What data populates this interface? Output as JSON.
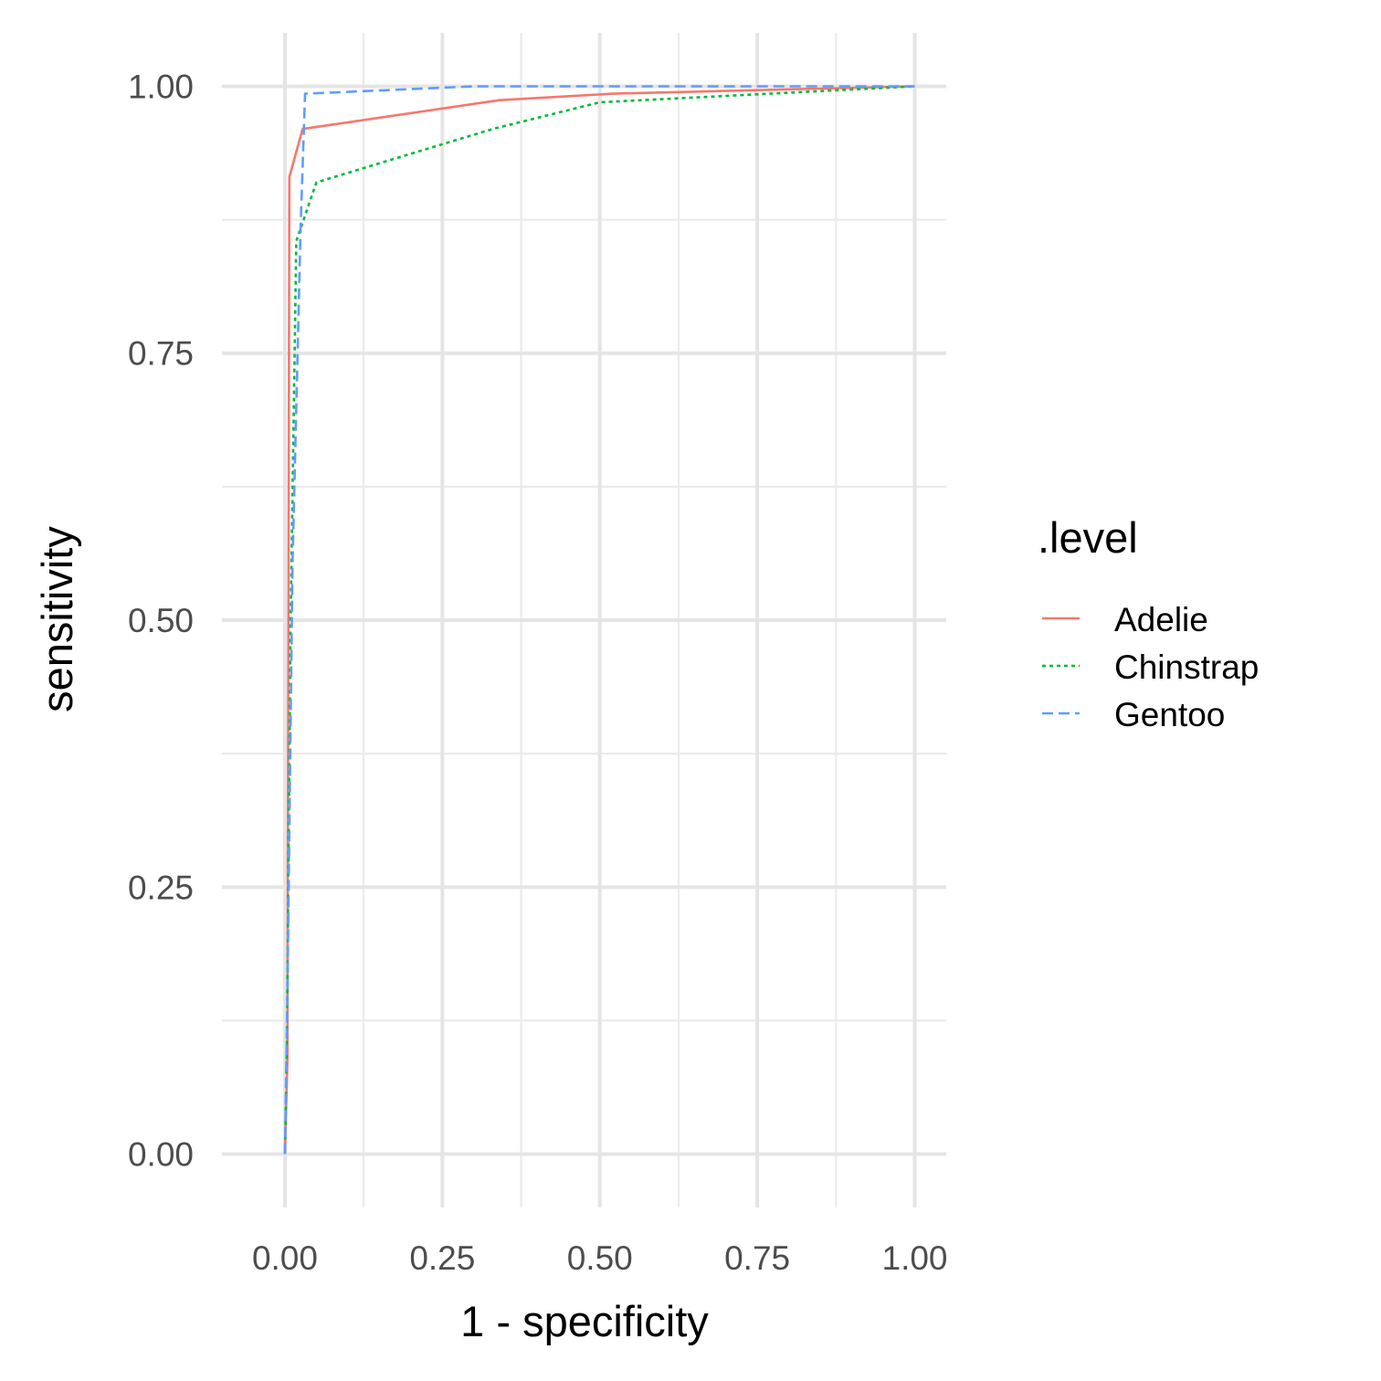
{
  "chart_data": {
    "type": "line",
    "title": "",
    "xlabel": "1 - specificity",
    "ylabel": "sensitivity",
    "xlim": [
      -0.1,
      1.05
    ],
    "ylim": [
      -0.05,
      1.05
    ],
    "x_ticks": [
      0,
      0.25,
      0.5,
      0.75,
      1
    ],
    "x_tick_labels": [
      "0.00",
      "0.25",
      "0.50",
      "0.75",
      "1.00"
    ],
    "x_minor_ticks": [
      0.125,
      0.375,
      0.625,
      0.875
    ],
    "y_ticks": [
      0,
      0.25,
      0.5,
      0.75,
      1
    ],
    "y_tick_labels": [
      "0.00",
      "0.25",
      "0.50",
      "0.75",
      "1.00"
    ],
    "y_minor_ticks": [
      0.125,
      0.375,
      0.625,
      0.875
    ],
    "grid": true,
    "legend": {
      "title": ".level",
      "position": "right"
    },
    "series": [
      {
        "name": "Adelie",
        "color": "#F8766D",
        "dash": "solid",
        "x": [
          0,
          0.004,
          0.007,
          0.028,
          0.34,
          0.52,
          1.0
        ],
        "y": [
          0,
          0.09,
          0.915,
          0.96,
          0.987,
          0.993,
          1.0
        ]
      },
      {
        "name": "Chinstrap",
        "color": "#00BA38",
        "dash": "dotted",
        "x": [
          0,
          0.003,
          0.009,
          0.018,
          0.05,
          0.33,
          0.5,
          1.0
        ],
        "y": [
          0,
          0.1,
          0.5,
          0.855,
          0.91,
          0.96,
          0.985,
          1.0
        ]
      },
      {
        "name": "Gentoo",
        "color": "#619CFF",
        "dash": "dashed",
        "x": [
          0,
          0.004,
          0.012,
          0.025,
          0.032,
          0.3,
          1.0
        ],
        "y": [
          0,
          0.15,
          0.55,
          0.87,
          0.993,
          1.0,
          1.0
        ]
      }
    ]
  }
}
